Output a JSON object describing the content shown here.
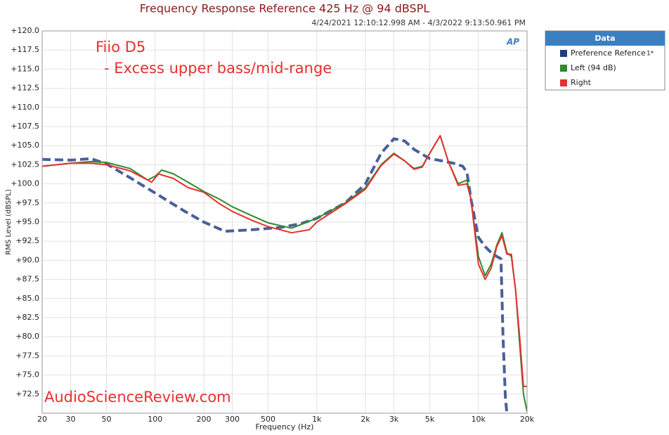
{
  "chart_data": {
    "type": "line",
    "title": "Frequency Response Reference 425 Hz @ 94 dBSPL",
    "subtitle": "4/24/2021 12:10:12.998 AM - 4/3/2022 9:13:50.961 PM",
    "x_label": "Frequency (Hz)",
    "y_label": "RMS Level (dBSPL)",
    "annotations": [
      "Fiio D5",
      "- Excess upper bass/mid-range",
      "AudioScienceReview.com"
    ],
    "logo": "AP",
    "legend_title": "Data",
    "legend_position": "right",
    "x_log": true,
    "grid": true,
    "xlim": [
      20,
      20000
    ],
    "ylim": [
      70,
      120
    ],
    "xticks": [
      20,
      30,
      50,
      100,
      200,
      300,
      500,
      {
        "value": 1000,
        "label": "1k"
      },
      {
        "value": 2000,
        "label": "2k"
      },
      {
        "value": 3000,
        "label": "3k"
      },
      {
        "value": 5000,
        "label": "5k"
      },
      {
        "value": 10000,
        "label": "10k"
      },
      {
        "value": 20000,
        "label": "20k"
      }
    ],
    "yticks": [
      {
        "value": 72.5,
        "label": "+72.5"
      },
      {
        "value": 75,
        "label": "+75.0"
      },
      {
        "value": 77.5,
        "label": "+77.5"
      },
      {
        "value": 80,
        "label": "+80.0"
      },
      {
        "value": 82.5,
        "label": "+82.5"
      },
      {
        "value": 85,
        "label": "+85.0"
      },
      {
        "value": 87.5,
        "label": "+87.5"
      },
      {
        "value": 90,
        "label": "+90.0"
      },
      {
        "value": 92.5,
        "label": "+92.5"
      },
      {
        "value": 95,
        "label": "+95.0"
      },
      {
        "value": 97.5,
        "label": "+97.5"
      },
      {
        "value": 100,
        "label": "+100.0"
      },
      {
        "value": 102.5,
        "label": "+102.5"
      },
      {
        "value": 105,
        "label": "+105.0"
      },
      {
        "value": 107.5,
        "label": "+107.5"
      },
      {
        "value": 110,
        "label": "+110.0"
      },
      {
        "value": 112.5,
        "label": "+112.5"
      },
      {
        "value": 115,
        "label": "+115.0"
      },
      {
        "value": 117.5,
        "label": "+117.5"
      },
      {
        "value": 120,
        "label": "+120.0"
      }
    ],
    "series": [
      {
        "name": "Preference Refence",
        "legend_note": "1*",
        "color": "#4a5f9a",
        "legend_color": "#1f3d7a",
        "line_style": "dashed",
        "x": [
          20,
          30,
          40,
          50,
          70,
          100,
          150,
          200,
          270,
          400,
          600,
          800,
          1000,
          1500,
          2000,
          2500,
          3000,
          3500,
          4000,
          5000,
          6000,
          7000,
          8000,
          8500,
          9000,
          10000,
          11000,
          12000,
          13000,
          13800,
          14200,
          14700,
          15000
        ],
        "values": [
          103.2,
          103.1,
          103.3,
          102.6,
          100.8,
          98.8,
          96.5,
          95.0,
          93.8,
          94.0,
          94.3,
          94.8,
          95.5,
          97.5,
          100.0,
          104.0,
          105.9,
          105.6,
          104.5,
          103.3,
          103.0,
          102.7,
          102.3,
          101.5,
          98.0,
          93.0,
          91.8,
          91.0,
          90.5,
          90.2,
          80.0,
          72.0,
          70.0
        ]
      },
      {
        "name": "Left (94 dB)",
        "color": "#2e8b2e",
        "legend_color": "#2e8b2e",
        "line_style": "solid",
        "x": [
          20,
          30,
          40,
          50,
          70,
          90,
          100,
          110,
          130,
          160,
          200,
          250,
          300,
          400,
          500,
          700,
          1000,
          1500,
          2000,
          2500,
          3000,
          3500,
          4000,
          4500,
          5000,
          5800,
          6500,
          7500,
          8500,
          9000,
          10000,
          11000,
          12000,
          13000,
          14000,
          15000,
          16000,
          17000,
          18000,
          19000,
          20000
        ],
        "values": [
          102.3,
          102.7,
          102.9,
          102.8,
          102.0,
          100.5,
          101.0,
          101.8,
          101.3,
          100.2,
          99.0,
          98.0,
          97.0,
          95.8,
          94.9,
          94.2,
          95.5,
          97.5,
          99.5,
          102.5,
          104.0,
          103.0,
          102.0,
          102.3,
          104.0,
          106.3,
          103.0,
          100.0,
          100.5,
          98.0,
          90.5,
          88.0,
          89.5,
          92.0,
          93.6,
          91.0,
          90.5,
          86.0,
          79.0,
          72.5,
          70.2
        ]
      },
      {
        "name": "Right",
        "color": "#e83030",
        "legend_color": "#e83030",
        "line_style": "solid",
        "x": [
          20,
          30,
          40,
          50,
          70,
          90,
          95,
          105,
          130,
          160,
          200,
          250,
          300,
          400,
          500,
          700,
          900,
          1000,
          1500,
          2000,
          2500,
          3000,
          3500,
          4000,
          4500,
          5000,
          5800,
          6500,
          7500,
          8500,
          9000,
          10000,
          11000,
          12000,
          13000,
          14000,
          15000,
          16000,
          17000,
          18000,
          19000,
          20000
        ],
        "values": [
          102.3,
          102.7,
          102.7,
          102.5,
          101.7,
          100.5,
          100.2,
          101.3,
          100.7,
          99.5,
          98.9,
          97.4,
          96.4,
          95.2,
          94.4,
          93.6,
          94.0,
          95.0,
          97.4,
          99.3,
          102.4,
          103.9,
          103.0,
          101.9,
          102.2,
          104.0,
          106.3,
          103.0,
          99.8,
          100.0,
          98.0,
          89.5,
          87.5,
          89.0,
          91.8,
          93.2,
          90.8,
          90.8,
          86.0,
          80.0,
          73.5,
          73.5
        ]
      }
    ]
  }
}
